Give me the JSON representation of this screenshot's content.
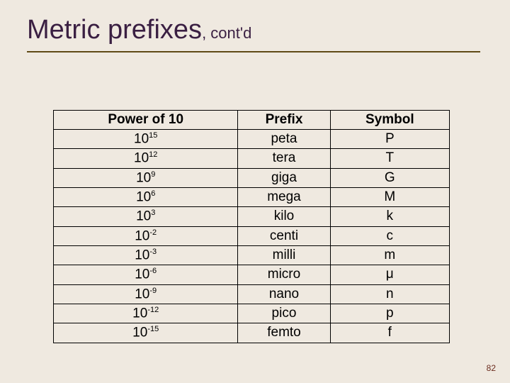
{
  "title": {
    "main": "Metric prefixes",
    "sub": ", cont'd",
    "color": "#3a1f42",
    "main_fontsize": 38,
    "sub_fontsize": 22,
    "rule_color": "#5f4a16"
  },
  "background_color": "#efe9e0",
  "table": {
    "border_color": "#000000",
    "header_fontweight": "bold",
    "fontsize": 19,
    "columns": [
      "Power of 10",
      "Prefix",
      "Symbol"
    ],
    "rows": [
      {
        "power_base": "10",
        "power_exp": "15",
        "prefix": "peta",
        "symbol": "P"
      },
      {
        "power_base": "10",
        "power_exp": "12",
        "prefix": "tera",
        "symbol": "T"
      },
      {
        "power_base": "10",
        "power_exp": "9",
        "prefix": "giga",
        "symbol": "G"
      },
      {
        "power_base": "10",
        "power_exp": "6",
        "prefix": "mega",
        "symbol": "M"
      },
      {
        "power_base": "10",
        "power_exp": "3",
        "prefix": "kilo",
        "symbol": "k"
      },
      {
        "power_base": "10",
        "power_exp": "-2",
        "prefix": "centi",
        "symbol": "c"
      },
      {
        "power_base": "10",
        "power_exp": "-3",
        "prefix": "milli",
        "symbol": "m"
      },
      {
        "power_base": "10",
        "power_exp": "-6",
        "prefix": "micro",
        "symbol": "μ"
      },
      {
        "power_base": "10",
        "power_exp": "-9",
        "prefix": "nano",
        "symbol": "n"
      },
      {
        "power_base": "10",
        "power_exp": "-12",
        "prefix": "pico",
        "symbol": "p"
      },
      {
        "power_base": "10",
        "power_exp": "-15",
        "prefix": "femto",
        "symbol": "f"
      }
    ]
  },
  "page_number": "82",
  "page_number_color": "#6b2c1e"
}
